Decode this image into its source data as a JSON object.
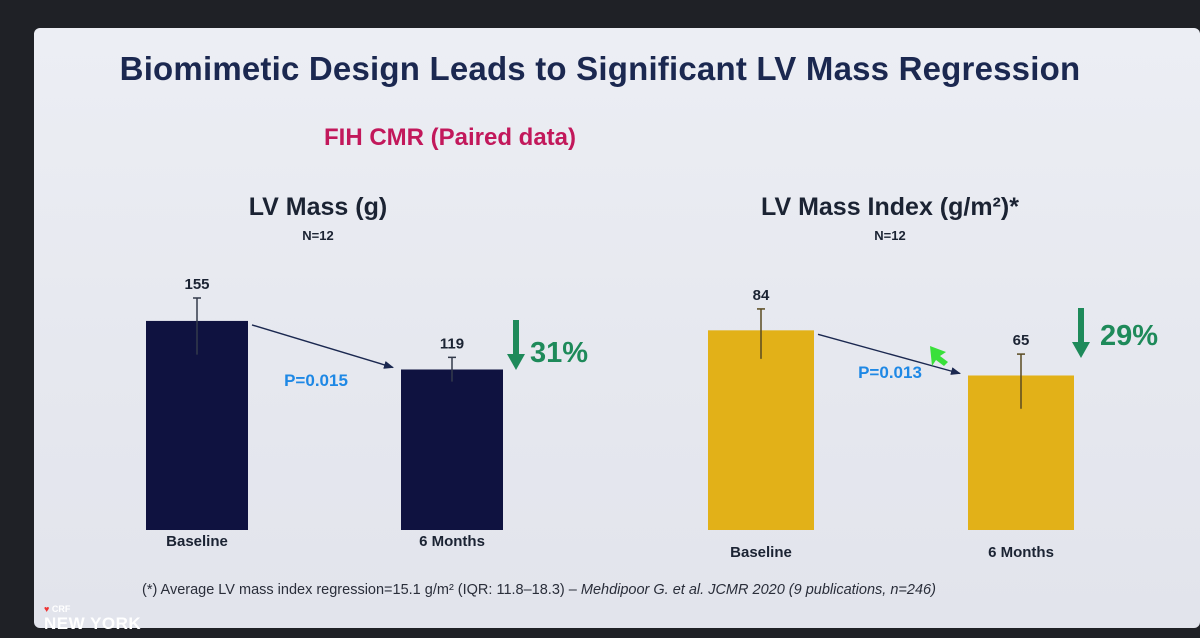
{
  "slide": {
    "title": "Biomimetic Design Leads to Significant LV Mass Regression",
    "subtitle": "FIH CMR (Paired data)",
    "footnote_main": "(*) Average LV mass index regression=15.1 g/m² (IQR: 11.8–18.3) – ",
    "footnote_italic": "Mehdipoor G. et al. JCMR 2020 (9 publications, n=246)",
    "brand_small": "CRF",
    "brand_large": "NEW YORK"
  },
  "colors": {
    "left_bars": "#0f1240",
    "right_bars": "#e2b118",
    "title": "#1b2850",
    "subtitle": "#c2185b",
    "pvalue": "#1e88e5",
    "percent": "#1e8a5a"
  },
  "chart_data": [
    {
      "type": "bar",
      "title": "LV Mass (g)",
      "subtitle": "N=12",
      "categories": [
        "Baseline",
        "6 Months"
      ],
      "values": [
        155,
        119
      ],
      "value_labels": [
        "155",
        "119"
      ],
      "error_bars": [
        [
          130,
          172
        ],
        [
          110,
          128
        ]
      ],
      "p_value": "P=0.015",
      "change": "31%",
      "ylim": [
        0,
        215
      ]
    },
    {
      "type": "bar",
      "title": "LV Mass Index (g/m²)*",
      "subtitle": "N=12",
      "categories": [
        "Baseline",
        "6 Months"
      ],
      "values": [
        84,
        65
      ],
      "value_labels": [
        "84",
        "65"
      ],
      "error_bars": [
        [
          72,
          93
        ],
        [
          51,
          74
        ]
      ],
      "p_value": "P=0.013",
      "change": "29%",
      "ylim": [
        0,
        122
      ]
    }
  ]
}
